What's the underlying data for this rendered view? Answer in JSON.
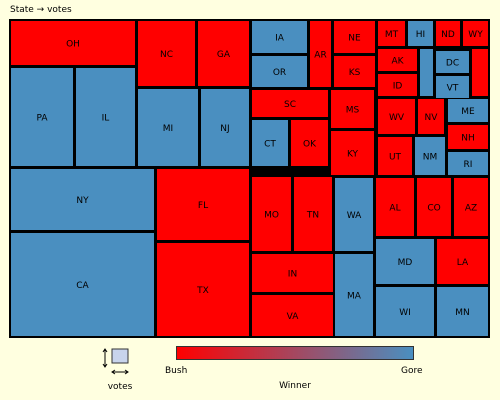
{
  "title": "State → votes",
  "colors": {
    "bush": "#ff0000",
    "gore": "#4a8fc0",
    "border": "#000000"
  },
  "chart_data": {
    "type": "treemap",
    "title": "State → votes",
    "size_legend_label": "votes",
    "color_legend": {
      "title": "Winner",
      "low_label": "Bush",
      "high_label": "Gore"
    },
    "tiles": [
      {
        "state": "OH",
        "winner": "Bush"
      },
      {
        "state": "PA",
        "winner": "Gore"
      },
      {
        "state": "IL",
        "winner": "Gore"
      },
      {
        "state": "NC",
        "winner": "Bush"
      },
      {
        "state": "GA",
        "winner": "Bush"
      },
      {
        "state": "MI",
        "winner": "Gore"
      },
      {
        "state": "NJ",
        "winner": "Gore"
      },
      {
        "state": "NY",
        "winner": "Gore"
      },
      {
        "state": "CA",
        "winner": "Gore"
      },
      {
        "state": "FL",
        "winner": "Bush"
      },
      {
        "state": "TX",
        "winner": "Bush"
      },
      {
        "state": "IA",
        "winner": "Gore"
      },
      {
        "state": "OR",
        "winner": "Gore"
      },
      {
        "state": "AR",
        "winner": "Bush"
      },
      {
        "state": "NE",
        "winner": "Bush"
      },
      {
        "state": "KS",
        "winner": "Bush"
      },
      {
        "state": "MT",
        "winner": "Bush"
      },
      {
        "state": "HI",
        "winner": "Gore"
      },
      {
        "state": "ND",
        "winner": "Bush"
      },
      {
        "state": "WY",
        "winner": "Bush"
      },
      {
        "state": "AK",
        "winner": "Bush"
      },
      {
        "state": "ID",
        "winner": "Bush"
      },
      {
        "state": "DC",
        "winner": "Gore"
      },
      {
        "state": "VT",
        "winner": "Gore"
      },
      {
        "state": "SC",
        "winner": "Bush"
      },
      {
        "state": "CT",
        "winner": "Gore"
      },
      {
        "state": "OK",
        "winner": "Bush"
      },
      {
        "state": "MS",
        "winner": "Bush"
      },
      {
        "state": "KY",
        "winner": "Bush"
      },
      {
        "state": "WV",
        "winner": "Bush"
      },
      {
        "state": "NV",
        "winner": "Bush"
      },
      {
        "state": "ME",
        "winner": "Gore"
      },
      {
        "state": "NH",
        "winner": "Bush"
      },
      {
        "state": "UT",
        "winner": "Bush"
      },
      {
        "state": "NM",
        "winner": "Gore"
      },
      {
        "state": "RI",
        "winner": "Gore"
      },
      {
        "state": "MO",
        "winner": "Bush"
      },
      {
        "state": "TN",
        "winner": "Bush"
      },
      {
        "state": "WA",
        "winner": "Gore"
      },
      {
        "state": "AL",
        "winner": "Bush"
      },
      {
        "state": "CO",
        "winner": "Bush"
      },
      {
        "state": "AZ",
        "winner": "Bush"
      },
      {
        "state": "IN",
        "winner": "Bush"
      },
      {
        "state": "VA",
        "winner": "Bush"
      },
      {
        "state": "MA",
        "winner": "Gore"
      },
      {
        "state": "MD",
        "winner": "Gore"
      },
      {
        "state": "LA",
        "winner": "Bush"
      },
      {
        "state": "WI",
        "winner": "Gore"
      },
      {
        "state": "MN",
        "winner": "Gore"
      }
    ]
  }
}
